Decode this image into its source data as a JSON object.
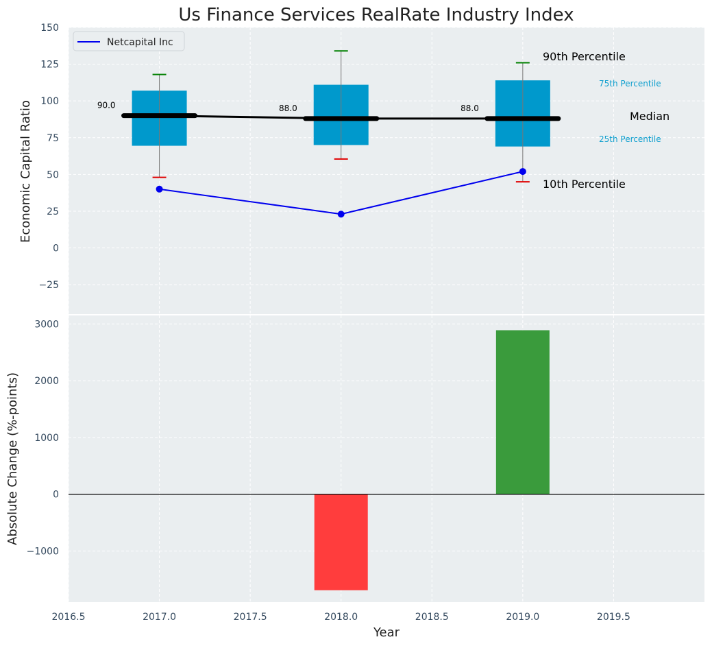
{
  "chart_data": {
    "title": "Us Finance Services RealRate Industry Index",
    "xlabel": "Year",
    "x_ticks": [
      "2016.5",
      "2017.0",
      "2017.5",
      "2018.0",
      "2018.5",
      "2019.0",
      "2019.5"
    ],
    "xlim": [
      2016.5,
      2020.0
    ],
    "grid": true,
    "top_panel": {
      "type": "box",
      "ylabel": "Economic Capital Ratio",
      "ylim": [
        -45,
        150
      ],
      "y_ticks": [
        "150",
        "125",
        "100",
        "75",
        "50",
        "25",
        "0",
        "−25"
      ],
      "years": [
        2017,
        2018,
        2019
      ],
      "p10": [
        48,
        60.5,
        45
      ],
      "p25": [
        69.5,
        70,
        69
      ],
      "median": [
        90,
        88,
        88
      ],
      "p75": [
        107,
        111,
        114
      ],
      "p90": [
        118,
        134,
        126
      ],
      "median_labels": [
        "90.0",
        "88.0",
        "88.0"
      ],
      "company_series": {
        "name": "Netcapital Inc",
        "values": [
          40,
          23,
          52
        ]
      },
      "legend": {
        "entries": [
          "Netcapital Inc"
        ],
        "placement": "top-left"
      },
      "annotations": {
        "p90": "90th Percentile",
        "p75": "75th Percentile",
        "median": "Median",
        "p25": "25th Percentile",
        "p10": "10th Percentile"
      }
    },
    "bottom_panel": {
      "type": "bar",
      "ylabel": "Absolute Change (%-points)",
      "ylim": [
        -1900,
        3150
      ],
      "y_ticks": [
        "3000",
        "2000",
        "1000",
        "0",
        "−1000"
      ],
      "years": [
        2018,
        2019
      ],
      "values": [
        -1690,
        2890
      ]
    },
    "colors": {
      "background": "#eaeef0",
      "box": "#0099cc",
      "median": "#000000",
      "company": "#0000ee",
      "p90_whisker": "#008000",
      "p10_whisker": "#e00000",
      "bar_positive": "#3a9b3c",
      "bar_negative": "#ff3d3d"
    }
  }
}
